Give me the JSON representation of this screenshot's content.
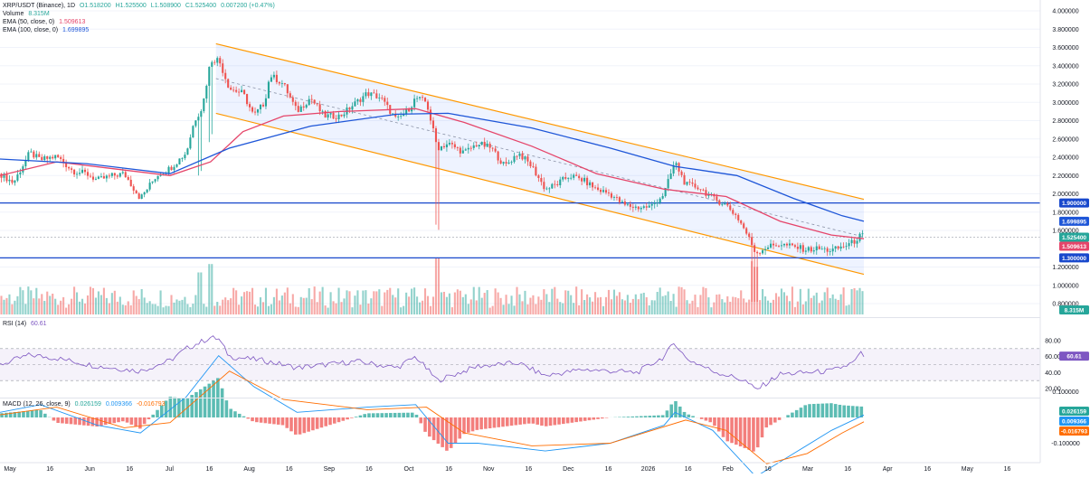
{
  "header": {
    "symbol_line": "XRP/USDT (Binance), 1D",
    "ohlc": {
      "o": "O1.518200",
      "h": "H1.525500",
      "l": "L1.508900",
      "c": "C1.525400",
      "chg": "0.007200 (+0.47%)"
    },
    "volume_label": "Volume",
    "volume_value": "8.315M",
    "ema50_label": "EMA (50, close, 0)",
    "ema50_value": "1.509613",
    "ema100_label": "EMA (100, close, 0)",
    "ema100_value": "1.699895"
  },
  "rsi": {
    "label": "RSI (14)",
    "value_text": "60.61",
    "value": 60.61,
    "levels": [
      70,
      50,
      30
    ],
    "axis": [
      "80.00",
      "60.00",
      "40.00",
      "20.00"
    ]
  },
  "macd": {
    "label": "MACD (12, 26, close, 9)",
    "hist_text": "0.026159",
    "macd_text": "0.009366",
    "signal_text": "-0.016793",
    "axis": [
      "0.100000",
      "-0.100000"
    ]
  },
  "colors": {
    "up": "#26a69a",
    "down": "#ef5350",
    "ema50": "#e5456a",
    "ema100": "#1e56d8",
    "channel": "#ff9800",
    "level": "#1848cc",
    "rsi": "#7e57c2",
    "macd": "#2196f3",
    "signal": "#ff6d00"
  },
  "price_axis": [
    "4.000000",
    "3.800000",
    "3.600000",
    "3.400000",
    "3.200000",
    "3.000000",
    "2.800000",
    "2.600000",
    "2.400000",
    "2.200000",
    "2.000000",
    "1.800000",
    "1.600000",
    "1.200000",
    "1.000000",
    "0.800000"
  ],
  "badges": {
    "level_hi": "1.900000",
    "ema100": "1.699895",
    "price": "1.525400",
    "ema50": "1.509613",
    "level_lo": "1.300000",
    "volume": "8.315M",
    "rsi": "60.61",
    "hist": "0.026159",
    "macd": "0.009366",
    "signal": "-0.016793"
  },
  "time_axis": [
    "May",
    "16",
    "Jun",
    "16",
    "Jul",
    "16",
    "Aug",
    "16",
    "Sep",
    "16",
    "Oct",
    "16",
    "Nov",
    "16",
    "Dec",
    "16",
    "2026",
    "16",
    "Feb",
    "16",
    "Mar",
    "16",
    "Apr",
    "16",
    "May",
    "16"
  ],
  "chart_data": {
    "type": "candlestick",
    "symbol": "XRP/USDT",
    "interval": "1D",
    "x_range": [
      "2025-05-01",
      "2026-03-17"
    ],
    "ylim": [
      0.8,
      4.0
    ],
    "horizontal_levels": [
      1.9,
      1.3
    ],
    "channel_upper": [
      {
        "x": "2025-07-20",
        "y": 3.64
      },
      {
        "x": "2026-03-17",
        "y": 1.94
      }
    ],
    "channel_lower": [
      {
        "x": "2025-07-20",
        "y": 2.88
      },
      {
        "x": "2026-03-17",
        "y": 1.12
      }
    ],
    "close_series": [
      {
        "x": "2025-05-01",
        "y": 2.22
      },
      {
        "x": "2025-05-06",
        "y": 2.12
      },
      {
        "x": "2025-05-12",
        "y": 2.45
      },
      {
        "x": "2025-05-16",
        "y": 2.37
      },
      {
        "x": "2025-05-22",
        "y": 2.41
      },
      {
        "x": "2025-05-28",
        "y": 2.25
      },
      {
        "x": "2025-06-02",
        "y": 2.22
      },
      {
        "x": "2025-06-06",
        "y": 2.15
      },
      {
        "x": "2025-06-12",
        "y": 2.2
      },
      {
        "x": "2025-06-16",
        "y": 2.22
      },
      {
        "x": "2025-06-22",
        "y": 1.95
      },
      {
        "x": "2025-06-28",
        "y": 2.2
      },
      {
        "x": "2025-07-03",
        "y": 2.28
      },
      {
        "x": "2025-07-09",
        "y": 2.45
      },
      {
        "x": "2025-07-12",
        "y": 2.8
      },
      {
        "x": "2025-07-15",
        "y": 2.95
      },
      {
        "x": "2025-07-18",
        "y": 3.46
      },
      {
        "x": "2025-07-21",
        "y": 3.47
      },
      {
        "x": "2025-07-25",
        "y": 3.15
      },
      {
        "x": "2025-07-30",
        "y": 3.1
      },
      {
        "x": "2025-08-03",
        "y": 2.85
      },
      {
        "x": "2025-08-07",
        "y": 3.0
      },
      {
        "x": "2025-08-09",
        "y": 3.3
      },
      {
        "x": "2025-08-14",
        "y": 3.2
      },
      {
        "x": "2025-08-19",
        "y": 2.9
      },
      {
        "x": "2025-08-24",
        "y": 3.05
      },
      {
        "x": "2025-08-29",
        "y": 2.85
      },
      {
        "x": "2025-09-04",
        "y": 2.85
      },
      {
        "x": "2025-09-10",
        "y": 3.0
      },
      {
        "x": "2025-09-14",
        "y": 3.1
      },
      {
        "x": "2025-09-19",
        "y": 3.05
      },
      {
        "x": "2025-09-25",
        "y": 2.8
      },
      {
        "x": "2025-09-30",
        "y": 2.95
      },
      {
        "x": "2025-10-02",
        "y": 3.05
      },
      {
        "x": "2025-10-06",
        "y": 3.0
      },
      {
        "x": "2025-10-10",
        "y": 2.5
      },
      {
        "x": "2025-10-14",
        "y": 2.55
      },
      {
        "x": "2025-10-20",
        "y": 2.45
      },
      {
        "x": "2025-10-25",
        "y": 2.55
      },
      {
        "x": "2025-10-30",
        "y": 2.5
      },
      {
        "x": "2025-11-04",
        "y": 2.3
      },
      {
        "x": "2025-11-09",
        "y": 2.45
      },
      {
        "x": "2025-11-14",
        "y": 2.3
      },
      {
        "x": "2025-11-19",
        "y": 2.05
      },
      {
        "x": "2025-11-23",
        "y": 2.1
      },
      {
        "x": "2025-11-28",
        "y": 2.2
      },
      {
        "x": "2025-12-03",
        "y": 2.15
      },
      {
        "x": "2025-12-08",
        "y": 2.05
      },
      {
        "x": "2025-12-13",
        "y": 2.0
      },
      {
        "x": "2025-12-18",
        "y": 1.88
      },
      {
        "x": "2025-12-23",
        "y": 1.85
      },
      {
        "x": "2025-12-28",
        "y": 1.86
      },
      {
        "x": "2026-01-02",
        "y": 2.0
      },
      {
        "x": "2026-01-06",
        "y": 2.35
      },
      {
        "x": "2026-01-10",
        "y": 2.1
      },
      {
        "x": "2026-01-15",
        "y": 2.07
      },
      {
        "x": "2026-01-20",
        "y": 1.95
      },
      {
        "x": "2026-01-25",
        "y": 1.88
      },
      {
        "x": "2026-01-29",
        "y": 1.75
      },
      {
        "x": "2026-02-01",
        "y": 1.6
      },
      {
        "x": "2026-02-05",
        "y": 1.35
      },
      {
        "x": "2026-02-09",
        "y": 1.42
      },
      {
        "x": "2026-02-14",
        "y": 1.45
      },
      {
        "x": "2026-02-19",
        "y": 1.42
      },
      {
        "x": "2026-02-24",
        "y": 1.39
      },
      {
        "x": "2026-02-28",
        "y": 1.4
      },
      {
        "x": "2026-03-05",
        "y": 1.38
      },
      {
        "x": "2026-03-09",
        "y": 1.42
      },
      {
        "x": "2026-03-13",
        "y": 1.47
      },
      {
        "x": "2026-03-16",
        "y": 1.55
      },
      {
        "x": "2026-03-17",
        "y": 1.5254
      }
    ],
    "ema50_series": [
      {
        "x": "2025-05-01",
        "y": 2.2
      },
      {
        "x": "2025-05-22",
        "y": 2.35
      },
      {
        "x": "2025-06-16",
        "y": 2.26
      },
      {
        "x": "2025-07-03",
        "y": 2.2
      },
      {
        "x": "2025-07-18",
        "y": 2.35
      },
      {
        "x": "2025-07-30",
        "y": 2.68
      },
      {
        "x": "2025-08-14",
        "y": 2.85
      },
      {
        "x": "2025-09-04",
        "y": 2.9
      },
      {
        "x": "2025-10-02",
        "y": 2.93
      },
      {
        "x": "2025-10-20",
        "y": 2.78
      },
      {
        "x": "2025-11-14",
        "y": 2.52
      },
      {
        "x": "2025-12-08",
        "y": 2.22
      },
      {
        "x": "2026-01-02",
        "y": 2.05
      },
      {
        "x": "2026-01-25",
        "y": 1.97
      },
      {
        "x": "2026-02-14",
        "y": 1.7
      },
      {
        "x": "2026-03-05",
        "y": 1.55
      },
      {
        "x": "2026-03-17",
        "y": 1.5096
      }
    ],
    "ema100_series": [
      {
        "x": "2025-05-01",
        "y": 2.38
      },
      {
        "x": "2025-06-02",
        "y": 2.33
      },
      {
        "x": "2025-07-03",
        "y": 2.22
      },
      {
        "x": "2025-07-25",
        "y": 2.5
      },
      {
        "x": "2025-08-24",
        "y": 2.74
      },
      {
        "x": "2025-09-25",
        "y": 2.87
      },
      {
        "x": "2025-10-14",
        "y": 2.88
      },
      {
        "x": "2025-11-14",
        "y": 2.72
      },
      {
        "x": "2025-12-13",
        "y": 2.5
      },
      {
        "x": "2026-01-06",
        "y": 2.3
      },
      {
        "x": "2026-01-29",
        "y": 2.2
      },
      {
        "x": "2026-02-19",
        "y": 1.95
      },
      {
        "x": "2026-03-09",
        "y": 1.76
      },
      {
        "x": "2026-03-17",
        "y": 1.6999
      }
    ],
    "rsi_series": [
      {
        "x": "2025-05-01",
        "y": 50
      },
      {
        "x": "2025-05-12",
        "y": 62
      },
      {
        "x": "2025-05-22",
        "y": 58
      },
      {
        "x": "2025-06-06",
        "y": 48
      },
      {
        "x": "2025-06-22",
        "y": 42
      },
      {
        "x": "2025-07-03",
        "y": 55
      },
      {
        "x": "2025-07-09",
        "y": 70
      },
      {
        "x": "2025-07-18",
        "y": 84
      },
      {
        "x": "2025-07-21",
        "y": 82
      },
      {
        "x": "2025-07-25",
        "y": 60
      },
      {
        "x": "2025-08-07",
        "y": 55
      },
      {
        "x": "2025-08-19",
        "y": 46
      },
      {
        "x": "2025-09-10",
        "y": 54
      },
      {
        "x": "2025-09-25",
        "y": 46
      },
      {
        "x": "2025-10-02",
        "y": 60
      },
      {
        "x": "2025-10-10",
        "y": 30
      },
      {
        "x": "2025-10-25",
        "y": 48
      },
      {
        "x": "2025-11-09",
        "y": 52
      },
      {
        "x": "2025-11-19",
        "y": 36
      },
      {
        "x": "2025-12-03",
        "y": 44
      },
      {
        "x": "2025-12-23",
        "y": 40
      },
      {
        "x": "2026-01-02",
        "y": 60
      },
      {
        "x": "2026-01-06",
        "y": 78
      },
      {
        "x": "2026-01-10",
        "y": 58
      },
      {
        "x": "2026-01-20",
        "y": 42
      },
      {
        "x": "2026-02-01",
        "y": 30
      },
      {
        "x": "2026-02-05",
        "y": 18
      },
      {
        "x": "2026-02-14",
        "y": 38
      },
      {
        "x": "2026-02-24",
        "y": 40
      },
      {
        "x": "2026-03-05",
        "y": 42
      },
      {
        "x": "2026-03-13",
        "y": 52
      },
      {
        "x": "2026-03-16",
        "y": 64
      },
      {
        "x": "2026-03-17",
        "y": 60.61
      }
    ],
    "macd_series": [
      {
        "x": "2025-05-01",
        "y": 0.02
      },
      {
        "x": "2025-05-16",
        "y": 0.05
      },
      {
        "x": "2025-06-06",
        "y": -0.03
      },
      {
        "x": "2025-06-22",
        "y": -0.06
      },
      {
        "x": "2025-07-09",
        "y": 0.08
      },
      {
        "x": "2025-07-21",
        "y": 0.24
      },
      {
        "x": "2025-08-03",
        "y": 0.12
      },
      {
        "x": "2025-08-19",
        "y": 0.02
      },
      {
        "x": "2025-09-14",
        "y": 0.04
      },
      {
        "x": "2025-10-02",
        "y": 0.05
      },
      {
        "x": "2025-10-14",
        "y": -0.1
      },
      {
        "x": "2025-10-25",
        "y": -0.1
      },
      {
        "x": "2025-11-19",
        "y": -0.13
      },
      {
        "x": "2025-12-13",
        "y": -0.1
      },
      {
        "x": "2026-01-02",
        "y": -0.03
      },
      {
        "x": "2026-01-06",
        "y": 0.02
      },
      {
        "x": "2026-01-20",
        "y": -0.05
      },
      {
        "x": "2026-02-05",
        "y": -0.23
      },
      {
        "x": "2026-02-19",
        "y": -0.14
      },
      {
        "x": "2026-03-05",
        "y": -0.05
      },
      {
        "x": "2026-03-17",
        "y": 0.009366
      }
    ],
    "signal_series": [
      {
        "x": "2025-05-01",
        "y": 0.01
      },
      {
        "x": "2025-05-22",
        "y": 0.04
      },
      {
        "x": "2025-06-16",
        "y": -0.04
      },
      {
        "x": "2025-07-03",
        "y": -0.02
      },
      {
        "x": "2025-07-25",
        "y": 0.18
      },
      {
        "x": "2025-08-14",
        "y": 0.07
      },
      {
        "x": "2025-09-14",
        "y": 0.03
      },
      {
        "x": "2025-10-06",
        "y": 0.04
      },
      {
        "x": "2025-10-20",
        "y": -0.06
      },
      {
        "x": "2025-11-14",
        "y": -0.11
      },
      {
        "x": "2025-12-13",
        "y": -0.1
      },
      {
        "x": "2026-01-10",
        "y": -0.01
      },
      {
        "x": "2026-01-25",
        "y": -0.05
      },
      {
        "x": "2026-02-09",
        "y": -0.18
      },
      {
        "x": "2026-02-24",
        "y": -0.14
      },
      {
        "x": "2026-03-09",
        "y": -0.06
      },
      {
        "x": "2026-03-17",
        "y": -0.016793
      }
    ],
    "volume_spikes": [
      {
        "x": "2025-07-14",
        "y": 0.75
      },
      {
        "x": "2025-07-18",
        "y": 0.9
      },
      {
        "x": "2025-10-10",
        "y": 1.0
      },
      {
        "x": "2026-02-04",
        "y": 0.95
      },
      {
        "x": "2026-02-05",
        "y": 0.85
      }
    ]
  }
}
